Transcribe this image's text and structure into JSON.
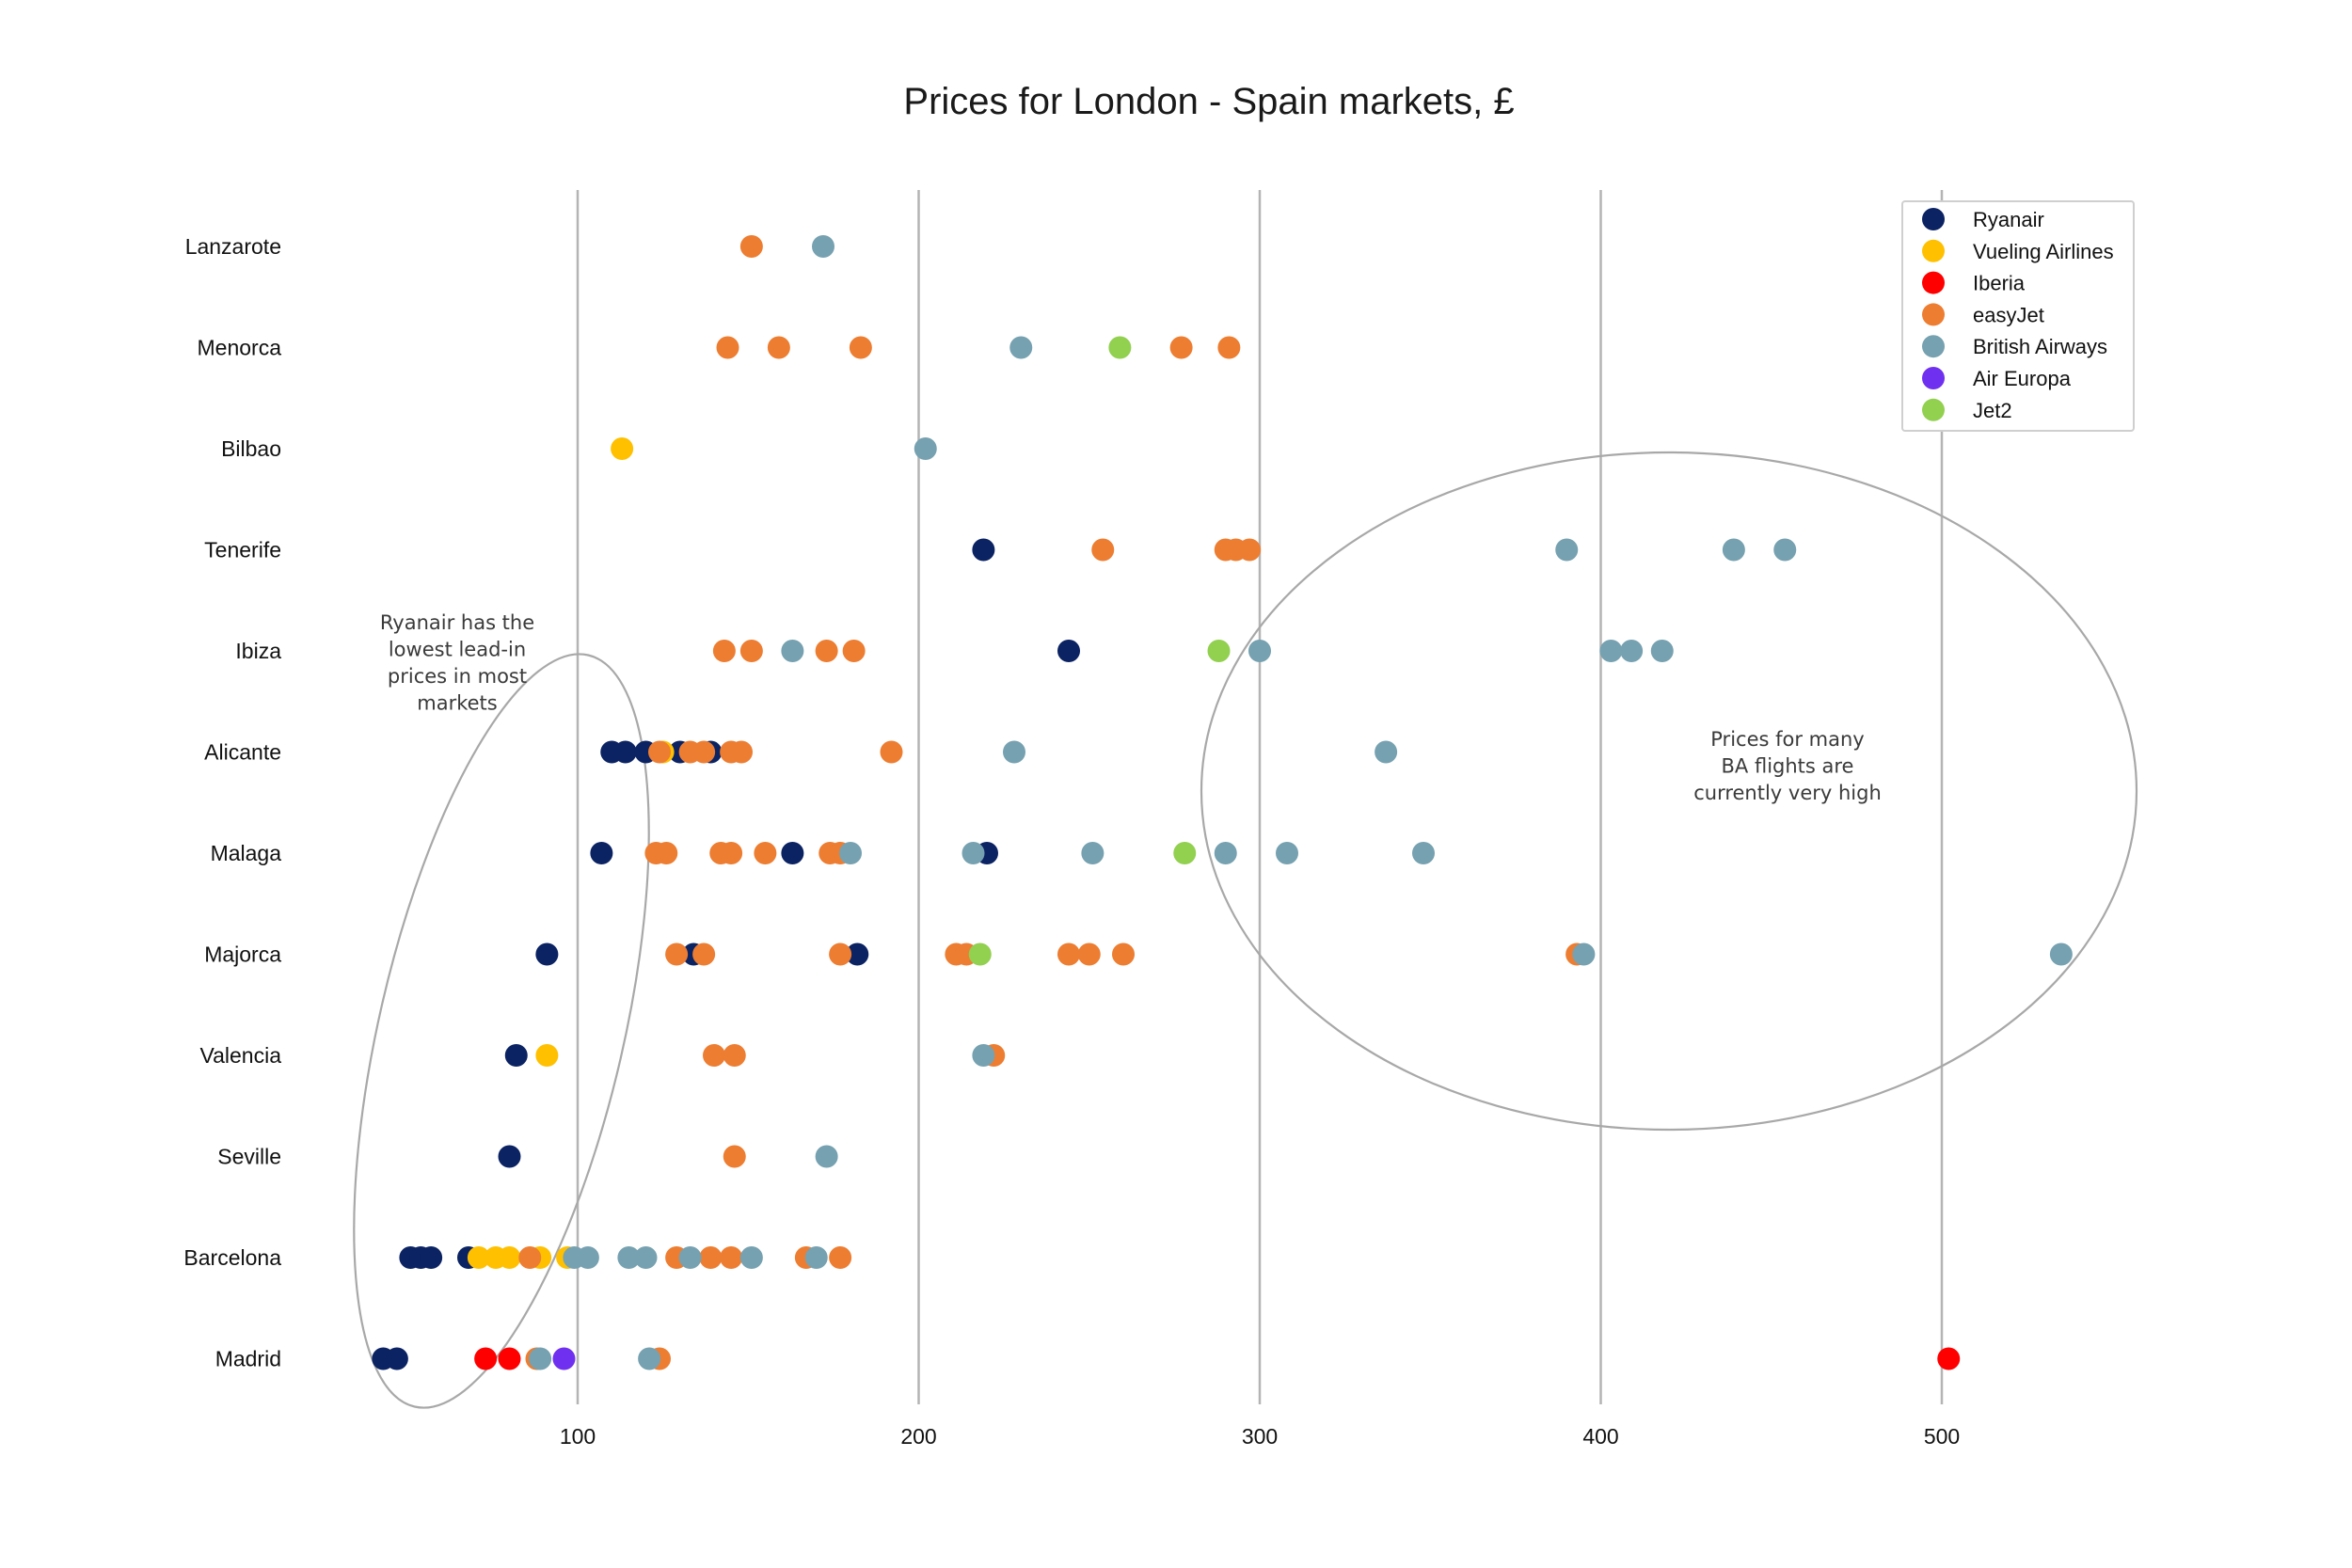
{
  "chart_data": {
    "type": "scatter",
    "title": "Prices for London - Spain markets, £",
    "xlabel": "",
    "ylabel": "",
    "xlim": [
      30,
      540
    ],
    "x_ticks": [
      100,
      200,
      300,
      400,
      500
    ],
    "grid": "vertical",
    "legend_position": "top-right",
    "categories": [
      "Lanzarote",
      "Menorca",
      "Bilbao",
      "Tenerife",
      "Ibiza",
      "Alicante",
      "Malaga",
      "Majorca",
      "Valencia",
      "Seville",
      "Barcelona",
      "Madrid"
    ],
    "series": [
      {
        "name": "Ryanair",
        "color": "#0b2363",
        "points": [
          {
            "cat": "Tenerife",
            "x": 219
          },
          {
            "cat": "Ibiza",
            "x": 244
          },
          {
            "cat": "Alicante",
            "x": 110
          },
          {
            "cat": "Alicante",
            "x": 114
          },
          {
            "cat": "Alicante",
            "x": 120
          },
          {
            "cat": "Alicante",
            "x": 130
          },
          {
            "cat": "Alicante",
            "x": 139
          },
          {
            "cat": "Malaga",
            "x": 107
          },
          {
            "cat": "Malaga",
            "x": 163
          },
          {
            "cat": "Malaga",
            "x": 220
          },
          {
            "cat": "Majorca",
            "x": 91
          },
          {
            "cat": "Majorca",
            "x": 134
          },
          {
            "cat": "Majorca",
            "x": 182
          },
          {
            "cat": "Valencia",
            "x": 82
          },
          {
            "cat": "Seville",
            "x": 80
          },
          {
            "cat": "Barcelona",
            "x": 51
          },
          {
            "cat": "Barcelona",
            "x": 54
          },
          {
            "cat": "Barcelona",
            "x": 57
          },
          {
            "cat": "Barcelona",
            "x": 68
          },
          {
            "cat": "Madrid",
            "x": 43
          },
          {
            "cat": "Madrid",
            "x": 47
          }
        ]
      },
      {
        "name": "Vueling Airlines",
        "color": "#ffc000",
        "points": [
          {
            "cat": "Bilbao",
            "x": 113
          },
          {
            "cat": "Alicante",
            "x": 125
          },
          {
            "cat": "Valencia",
            "x": 91
          },
          {
            "cat": "Barcelona",
            "x": 71
          },
          {
            "cat": "Barcelona",
            "x": 76
          },
          {
            "cat": "Barcelona",
            "x": 80
          },
          {
            "cat": "Barcelona",
            "x": 89
          },
          {
            "cat": "Barcelona",
            "x": 97
          }
        ]
      },
      {
        "name": "Iberia",
        "color": "#ff0000",
        "points": [
          {
            "cat": "Madrid",
            "x": 73
          },
          {
            "cat": "Madrid",
            "x": 80
          },
          {
            "cat": "Madrid",
            "x": 502
          }
        ]
      },
      {
        "name": "easyJet",
        "color": "#ed7d31",
        "points": [
          {
            "cat": "Lanzarote",
            "x": 151
          },
          {
            "cat": "Menorca",
            "x": 144
          },
          {
            "cat": "Menorca",
            "x": 159
          },
          {
            "cat": "Menorca",
            "x": 183
          },
          {
            "cat": "Menorca",
            "x": 277
          },
          {
            "cat": "Menorca",
            "x": 291
          },
          {
            "cat": "Tenerife",
            "x": 254
          },
          {
            "cat": "Tenerife",
            "x": 290
          },
          {
            "cat": "Tenerife",
            "x": 293
          },
          {
            "cat": "Tenerife",
            "x": 297
          },
          {
            "cat": "Ibiza",
            "x": 143
          },
          {
            "cat": "Ibiza",
            "x": 151
          },
          {
            "cat": "Ibiza",
            "x": 173
          },
          {
            "cat": "Ibiza",
            "x": 181
          },
          {
            "cat": "Alicante",
            "x": 124
          },
          {
            "cat": "Alicante",
            "x": 133
          },
          {
            "cat": "Alicante",
            "x": 137
          },
          {
            "cat": "Alicante",
            "x": 145
          },
          {
            "cat": "Alicante",
            "x": 148
          },
          {
            "cat": "Alicante",
            "x": 192
          },
          {
            "cat": "Malaga",
            "x": 123
          },
          {
            "cat": "Malaga",
            "x": 126
          },
          {
            "cat": "Malaga",
            "x": 142
          },
          {
            "cat": "Malaga",
            "x": 145
          },
          {
            "cat": "Malaga",
            "x": 155
          },
          {
            "cat": "Malaga",
            "x": 174
          },
          {
            "cat": "Malaga",
            "x": 177
          },
          {
            "cat": "Majorca",
            "x": 129
          },
          {
            "cat": "Majorca",
            "x": 137
          },
          {
            "cat": "Majorca",
            "x": 177
          },
          {
            "cat": "Majorca",
            "x": 211
          },
          {
            "cat": "Majorca",
            "x": 214
          },
          {
            "cat": "Majorca",
            "x": 244
          },
          {
            "cat": "Majorca",
            "x": 250
          },
          {
            "cat": "Majorca",
            "x": 260
          },
          {
            "cat": "Majorca",
            "x": 393
          },
          {
            "cat": "Valencia",
            "x": 140
          },
          {
            "cat": "Valencia",
            "x": 146
          },
          {
            "cat": "Valencia",
            "x": 222
          },
          {
            "cat": "Seville",
            "x": 146
          },
          {
            "cat": "Barcelona",
            "x": 86
          },
          {
            "cat": "Barcelona",
            "x": 129
          },
          {
            "cat": "Barcelona",
            "x": 139
          },
          {
            "cat": "Barcelona",
            "x": 145
          },
          {
            "cat": "Barcelona",
            "x": 167
          },
          {
            "cat": "Barcelona",
            "x": 177
          },
          {
            "cat": "Madrid",
            "x": 88
          },
          {
            "cat": "Madrid",
            "x": 124
          }
        ]
      },
      {
        "name": "British Airways",
        "color": "#76a1b0",
        "points": [
          {
            "cat": "Lanzarote",
            "x": 172
          },
          {
            "cat": "Menorca",
            "x": 230
          },
          {
            "cat": "Bilbao",
            "x": 202
          },
          {
            "cat": "Tenerife",
            "x": 390
          },
          {
            "cat": "Tenerife",
            "x": 439
          },
          {
            "cat": "Tenerife",
            "x": 454
          },
          {
            "cat": "Ibiza",
            "x": 163
          },
          {
            "cat": "Ibiza",
            "x": 300
          },
          {
            "cat": "Ibiza",
            "x": 403
          },
          {
            "cat": "Ibiza",
            "x": 409
          },
          {
            "cat": "Ibiza",
            "x": 418
          },
          {
            "cat": "Alicante",
            "x": 228
          },
          {
            "cat": "Alicante",
            "x": 337
          },
          {
            "cat": "Malaga",
            "x": 180
          },
          {
            "cat": "Malaga",
            "x": 216
          },
          {
            "cat": "Malaga",
            "x": 251
          },
          {
            "cat": "Malaga",
            "x": 290
          },
          {
            "cat": "Malaga",
            "x": 308
          },
          {
            "cat": "Malaga",
            "x": 348
          },
          {
            "cat": "Majorca",
            "x": 395
          },
          {
            "cat": "Majorca",
            "x": 535
          },
          {
            "cat": "Valencia",
            "x": 219
          },
          {
            "cat": "Seville",
            "x": 173
          },
          {
            "cat": "Barcelona",
            "x": 99
          },
          {
            "cat": "Barcelona",
            "x": 103
          },
          {
            "cat": "Barcelona",
            "x": 115
          },
          {
            "cat": "Barcelona",
            "x": 120
          },
          {
            "cat": "Barcelona",
            "x": 133
          },
          {
            "cat": "Barcelona",
            "x": 151
          },
          {
            "cat": "Barcelona",
            "x": 170
          },
          {
            "cat": "Madrid",
            "x": 89
          },
          {
            "cat": "Madrid",
            "x": 121
          }
        ]
      },
      {
        "name": "Air Europa",
        "color": "#7030f0",
        "points": [
          {
            "cat": "Madrid",
            "x": 96
          }
        ]
      },
      {
        "name": "Jet2",
        "color": "#92d050",
        "points": [
          {
            "cat": "Menorca",
            "x": 259
          },
          {
            "cat": "Ibiza",
            "x": 288
          },
          {
            "cat": "Malaga",
            "x": 278
          },
          {
            "cat": "Majorca",
            "x": 218
          }
        ]
      }
    ],
    "annotations": [
      {
        "id": "ryanair-note",
        "lines": [
          "Ryanair has the",
          "lowest lead-in",
          "prices in most",
          "markets"
        ]
      },
      {
        "id": "ba-note",
        "lines": [
          "Prices for many",
          "BA flights are",
          "currently very high"
        ]
      }
    ]
  }
}
